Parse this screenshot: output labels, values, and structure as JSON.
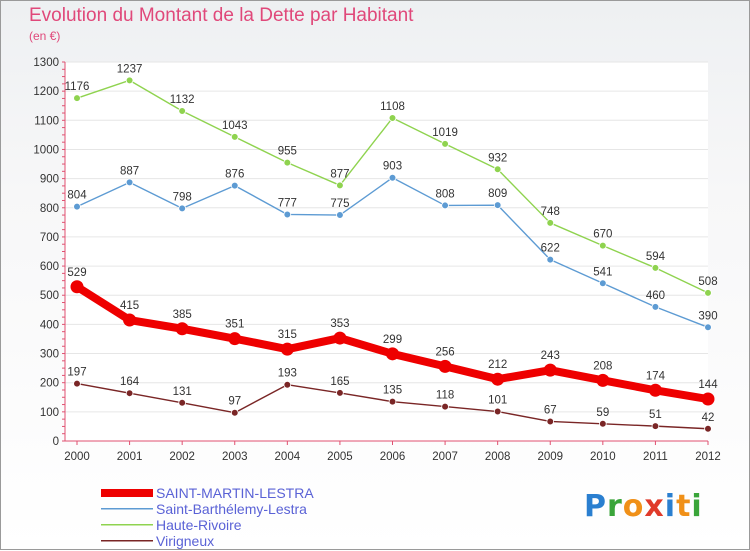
{
  "title": "Evolution du Montant de la Dette par Habitant",
  "unit": "(en €)",
  "logo": {
    "text": "Proxiti",
    "colors": [
      "#2a7fd0",
      "#3aa53a",
      "#f09018",
      "#e03a2a",
      "#2a7fd0",
      "#f09018",
      "#3aa53a"
    ]
  },
  "chart_data": {
    "type": "line",
    "title": "Evolution du Montant de la Dette par Habitant",
    "ylabel": "(en €)",
    "xlabel": "",
    "ylim": [
      0,
      1300
    ],
    "yticks": [
      0,
      100,
      200,
      300,
      400,
      500,
      600,
      700,
      800,
      900,
      1000,
      1100,
      1200,
      1300
    ],
    "grid": "horizontal",
    "legend_position": "bottom-left",
    "x": [
      "2000",
      "2001",
      "2002",
      "2003",
      "2004",
      "2005",
      "2006",
      "2007",
      "2008",
      "2009",
      "2010",
      "2011",
      "2012"
    ],
    "series": [
      {
        "name": "SAINT-MARTIN-LESTRA",
        "color": "#ee0000",
        "emphasis": true,
        "values": [
          529,
          415,
          385,
          351,
          315,
          353,
          299,
          256,
          212,
          243,
          208,
          174,
          144
        ]
      },
      {
        "name": "Saint-Barthélemy-Lestra",
        "color": "#5d9bd3",
        "emphasis": false,
        "values": [
          804,
          887,
          798,
          876,
          777,
          775,
          903,
          808,
          809,
          622,
          541,
          460,
          390
        ]
      },
      {
        "name": "Haute-Rivoire",
        "color": "#8fd34f",
        "emphasis": false,
        "values": [
          1176,
          1237,
          1132,
          1043,
          955,
          877,
          1108,
          1019,
          932,
          748,
          670,
          594,
          508
        ]
      },
      {
        "name": "Virigneux",
        "color": "#7a2626",
        "emphasis": false,
        "values": [
          197,
          164,
          131,
          97,
          193,
          165,
          135,
          118,
          101,
          67,
          59,
          51,
          42
        ]
      }
    ]
  }
}
